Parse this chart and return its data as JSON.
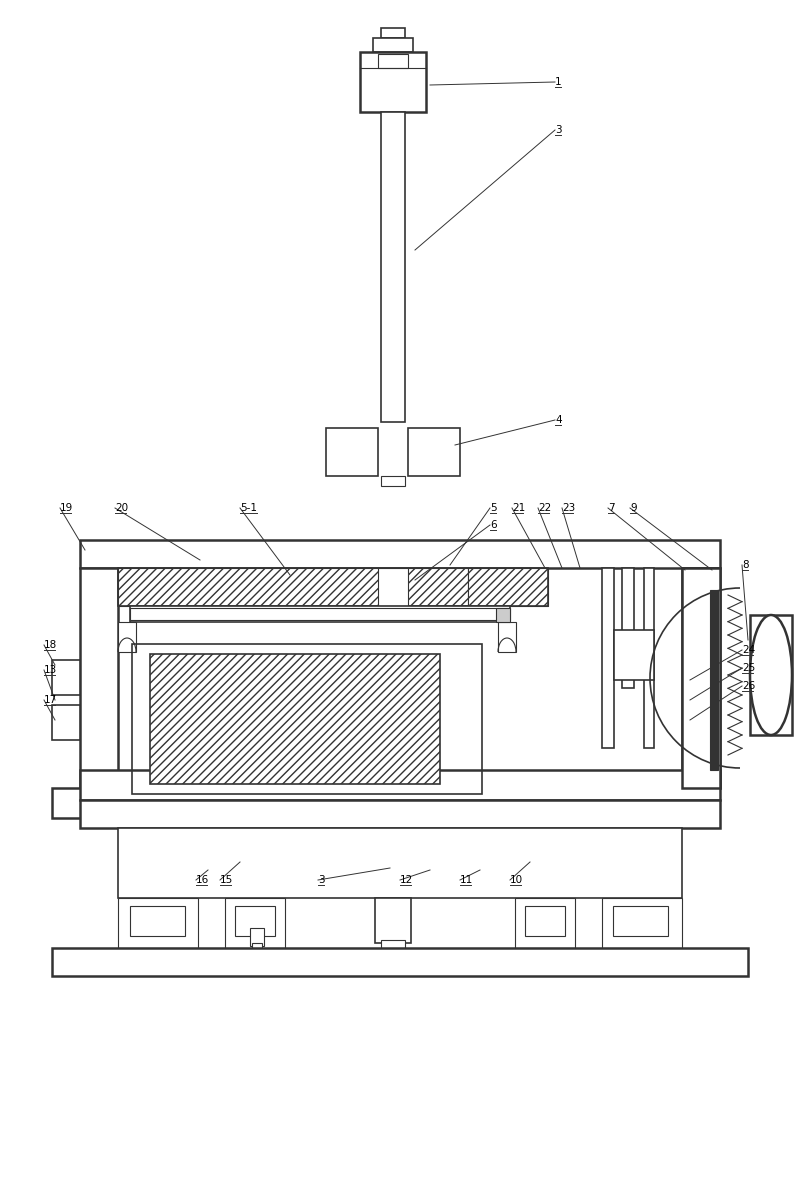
{
  "bg_color": "#ffffff",
  "line_color": "#333333",
  "fig_width": 8.0,
  "fig_height": 11.79,
  "dpi": 100
}
